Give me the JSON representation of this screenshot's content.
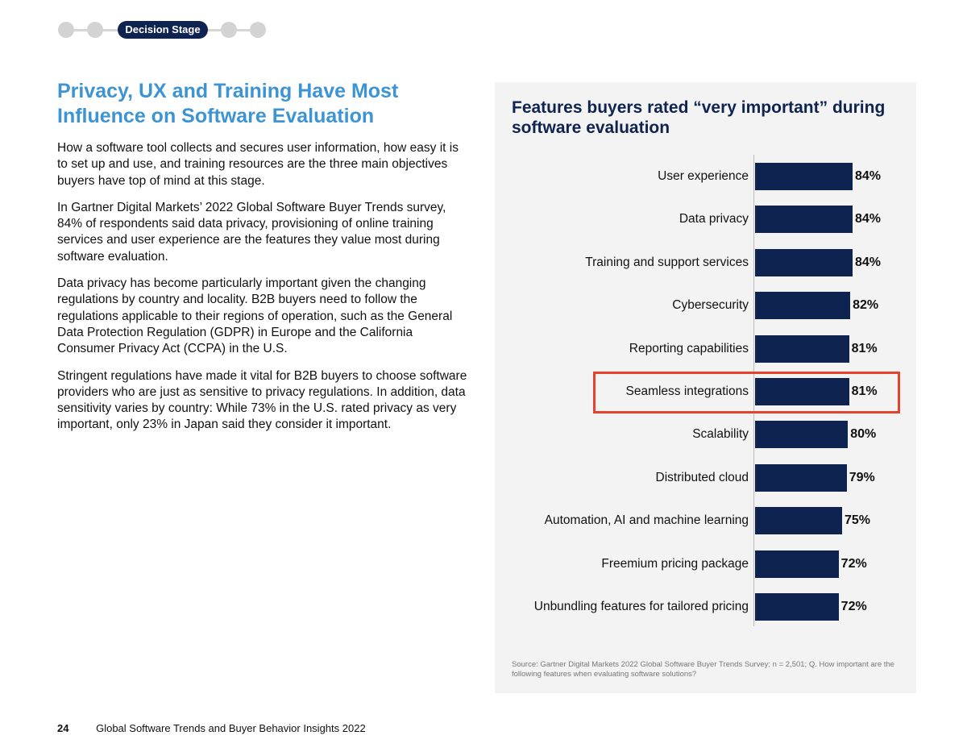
{
  "stage": {
    "label": "Decision Stage"
  },
  "heading": "Privacy, UX and Training Have Most Influence on Software Evaluation",
  "paragraphs": [
    "How a software tool collects and secures user information, how easy it is to set up and use, and training resources are the three main objectives buyers have top of mind at this stage.",
    "In Gartner Digital Markets’ 2022 Global Software Buyer Trends survey, 84% of respondents said data privacy, provisioning of online training services and user experience are the features they value most during software evaluation.",
    "Data privacy has become particularly important given the changing regulations by country and locality. B2B buyers need to follow the regulations applicable to their regions of operation, such as the General Data Protection Regulation (GDPR) in Europe and the California Consumer Privacy Act (CCPA) in the U.S.",
    "Stringent regulations have made it vital for B2B buyers to choose software providers who are just as sensitive to privacy regulations. In addition, data sensitivity varies by country: While 73% in the U.S. rated privacy as very important, only 23% in Japan said they consider it important."
  ],
  "chart_data": {
    "type": "bar",
    "orientation": "horizontal",
    "title": "Features buyers rated “very important” during software evaluation",
    "categories": [
      "User experience",
      "Data privacy",
      "Training and support services",
      "Cybersecurity",
      "Reporting capabilities",
      "Seamless integrations",
      "Scalability",
      "Distributed cloud",
      "Automation, AI and machine learning",
      "Freemium pricing package",
      "Unbundling features for tailored pricing"
    ],
    "values": [
      84,
      84,
      84,
      82,
      81,
      81,
      80,
      79,
      75,
      72,
      72
    ],
    "labels": [
      "84%",
      "84%",
      "84%",
      "82%",
      "81%",
      "81%",
      "80%",
      "79%",
      "75%",
      "72%",
      "72%"
    ],
    "xlim": [
      0,
      100
    ],
    "highlighted": "Seamless integrations",
    "bar_color": "#0f2350",
    "highlight_color": "#e5412d",
    "source": "Source: Gartner Digital Markets 2022 Global Software Buyer Trends Survey; n = 2,501; Q. How important are the following features when evaluating software solutions?"
  },
  "footer": {
    "page": "24",
    "title": "Global Software Trends and Buyer Behavior Insights 2022"
  }
}
